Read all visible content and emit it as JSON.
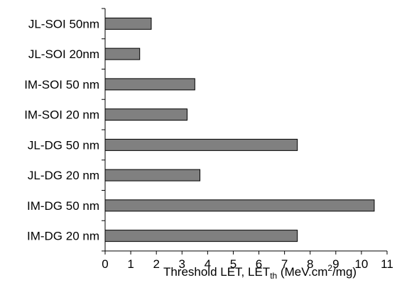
{
  "chart_data": {
    "type": "bar",
    "orientation": "horizontal",
    "title": "",
    "categories": [
      "JL-SOI 50nm",
      "JL-SOI 20nm",
      "IM-SOI 50 nm",
      "IM-SOI 20 nm",
      "JL-DG 50 nm",
      "JL-DG 20 nm",
      "IM-DG 50 nm",
      "IM-DG 20 nm"
    ],
    "values": [
      1.8,
      1.35,
      3.5,
      3.2,
      7.5,
      3.7,
      10.5,
      7.5
    ],
    "xlabel": {
      "main": "Threshold LET, LET",
      "sub": "th",
      "mid": " (MeV.cm",
      "sup": "2",
      "end": "/mg)"
    },
    "xlim": [
      0,
      11
    ],
    "x_ticks": [
      "0",
      "1",
      "2",
      "3",
      "4",
      "5",
      "6",
      "7",
      "8",
      "9",
      "10",
      "11"
    ],
    "grid": false,
    "legend": "none",
    "bar_color": "#808080",
    "bar_edge_color": "#000000"
  }
}
